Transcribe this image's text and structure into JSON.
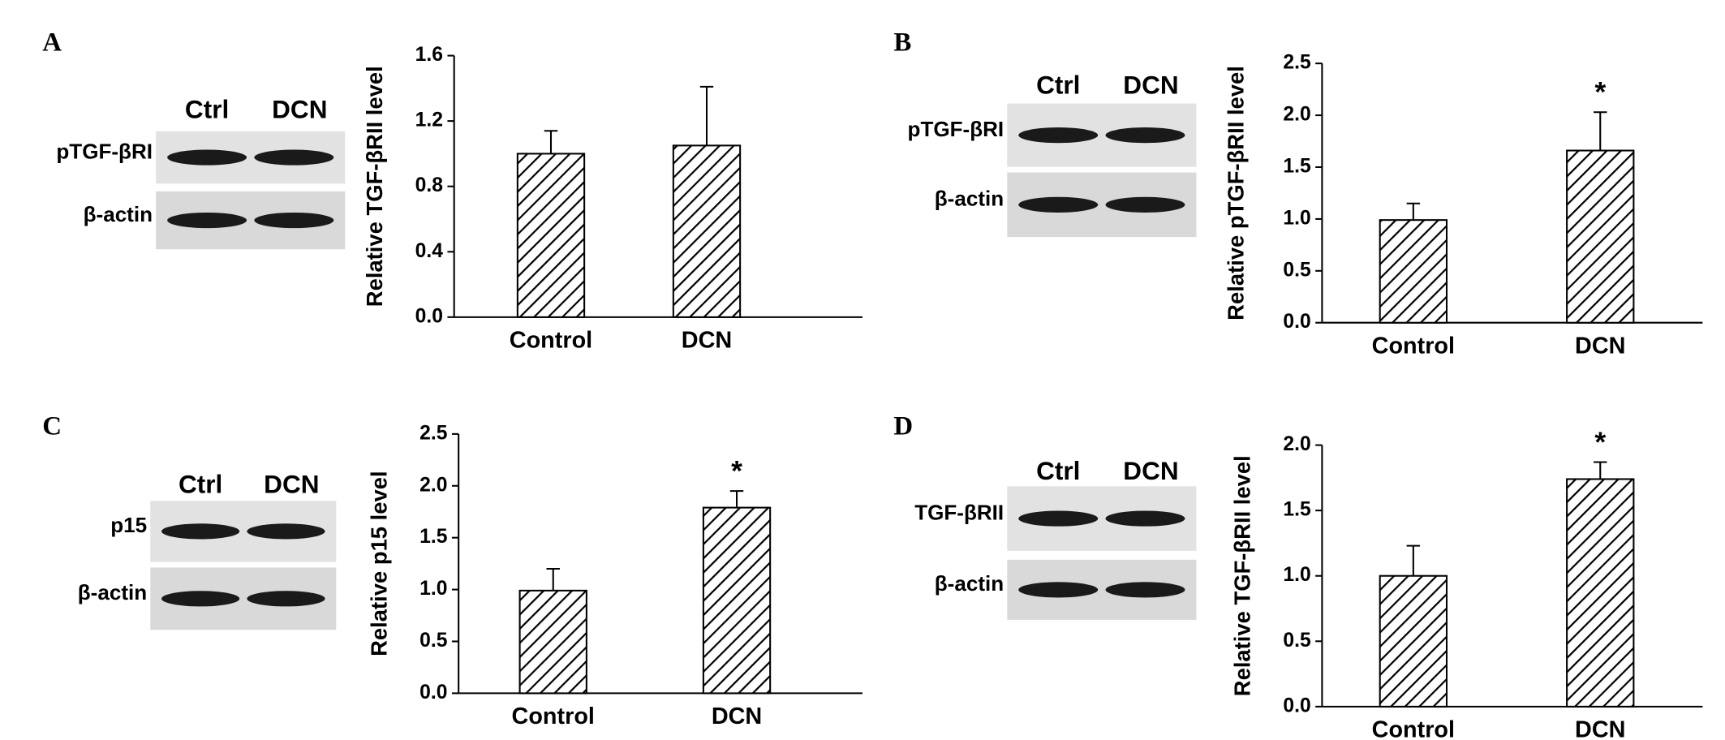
{
  "chart_data": [
    {
      "type": "bar",
      "panel": "A",
      "lanes": [
        "Ctrl",
        "DCN"
      ],
      "bands": [
        "pTGF-βRI",
        "β-actin"
      ],
      "ylabel": "Relative TGF-βRII level",
      "categories": [
        "Control",
        "DCN"
      ],
      "values": [
        1.0,
        1.05
      ],
      "errors": [
        0.14,
        0.36
      ],
      "color": "#000000",
      "ylim": [
        0,
        1.6
      ],
      "yticks": [
        {
          "value": 0,
          "label": "0.0"
        },
        0.4,
        0.8,
        1.2,
        1.6
      ]
    },
    {
      "type": "bar",
      "panel": "B",
      "lanes": [
        "Ctrl",
        "DCN"
      ],
      "bands": [
        "pTGF-βRI",
        "β-actin"
      ],
      "ylabel": "Relative pTGF-βRII level",
      "categories": [
        "Control",
        "DCN"
      ],
      "values": [
        0.99,
        1.66
      ],
      "errors": [
        0.16,
        0.37
      ],
      "annotations": [
        null,
        "*"
      ],
      "color": "#000000",
      "ylim": [
        0,
        2.5
      ],
      "yticks": [
        {
          "value": 0,
          "label": "0.0"
        },
        0.5,
        {
          "value": 1,
          "label": "1.0"
        },
        1.5,
        {
          "value": 2,
          "label": "2.0"
        },
        2.5
      ]
    },
    {
      "type": "bar",
      "panel": "C",
      "lanes": [
        "Ctrl",
        "DCN"
      ],
      "bands": [
        "p15",
        "β-actin"
      ],
      "ylabel": "Relative p15 level",
      "categories": [
        "Control",
        "DCN"
      ],
      "values": [
        0.99,
        1.79
      ],
      "errors": [
        0.21,
        0.16
      ],
      "annotations": [
        null,
        "*"
      ],
      "color": "#000000",
      "ylim": [
        0,
        2.5
      ],
      "yticks": [
        {
          "value": 0,
          "label": "0.0"
        },
        0.5,
        {
          "value": 1,
          "label": "1.0"
        },
        1.5,
        {
          "value": 2,
          "label": "2.0"
        },
        2.5
      ]
    },
    {
      "type": "bar",
      "panel": "D",
      "lanes": [
        "Ctrl",
        "DCN"
      ],
      "bands": [
        "TGF-βRII",
        "β-actin"
      ],
      "ylabel": "Relative TGF-βRII level",
      "categories": [
        "Control",
        "DCN"
      ],
      "values": [
        1.0,
        1.74
      ],
      "errors": [
        0.23,
        0.13
      ],
      "annotations": [
        null,
        "*"
      ],
      "color": "#000000",
      "ylim": [
        0,
        2.0
      ],
      "yticks": [
        {
          "value": 0,
          "label": "0.0"
        },
        0.5,
        {
          "value": 1,
          "label": "1.0"
        },
        1.5,
        {
          "value": 2,
          "label": "2.0"
        }
      ]
    }
  ]
}
